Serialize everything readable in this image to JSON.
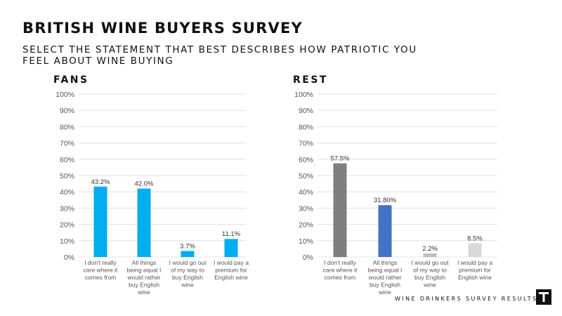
{
  "header": {
    "title": "BRITISH WINE BUYERS SURVEY",
    "subtitle": "SELECT THE STATEMENT THAT BEST DESCRIBES HOW PATRIOTIC YOU FEEL  ABOUT WINE BUYING"
  },
  "footer": {
    "text": "WINE DRINKERS SURVEY RESULTS",
    "logo_icon": "hammer-icon"
  },
  "chart_data": [
    {
      "type": "bar",
      "title": "FANS",
      "categories": [
        "I don't really care where it comes from",
        "All things being equal I would rather buy English wine",
        "I would go out of my way to buy English wine",
        "I would pay a premium for English wine"
      ],
      "category_lines": [
        [
          "I don't really",
          "care where it",
          "comes from"
        ],
        [
          "All things",
          "being equal I",
          "would rather",
          "buy English",
          "wine"
        ],
        [
          "I would go out",
          "of my way to",
          "buy English",
          "wine"
        ],
        [
          "I would pay a",
          "premium for",
          "English wine"
        ]
      ],
      "values": [
        43.2,
        42.0,
        3.7,
        11.1
      ],
      "data_labels": [
        "43.2%",
        "42.0%",
        "3.7%",
        "11.1%"
      ],
      "colors": [
        "#00aeef",
        "#00aeef",
        "#00aeef",
        "#00aeef"
      ],
      "ylim": [
        0,
        100
      ],
      "yticks": [
        "0%",
        "10%",
        "20%",
        "30%",
        "40%",
        "50%",
        "60%",
        "70%",
        "80%",
        "90%",
        "100%"
      ],
      "grid": true
    },
    {
      "type": "bar",
      "title": "REST",
      "categories": [
        "I don't really care where it comes from",
        "All things being equal I would rather buy English wine",
        "I would go out of my way to buy English wine",
        "I would pay a premium for English wine"
      ],
      "category_lines": [
        [
          "I don't really",
          "care where it",
          "comes from"
        ],
        [
          "All things",
          "being equal I",
          "would rather",
          "buy English",
          "wine"
        ],
        [
          "I would go out",
          "of my way to",
          "buy English",
          "wine"
        ],
        [
          "I would pay a",
          "premium for",
          "English wine"
        ]
      ],
      "values": [
        57.5,
        31.8,
        2.2,
        8.5
      ],
      "data_labels": [
        "57.5%",
        "31.80%",
        "2.2%",
        "8.5%"
      ],
      "colors": [
        "#7f7f7f",
        "#4472c4",
        "#bfbfbf",
        "#d9d9d9"
      ],
      "ylim": [
        0,
        100
      ],
      "yticks": [
        "0%",
        "10%",
        "20%",
        "30%",
        "40%",
        "50%",
        "60%",
        "70%",
        "80%",
        "90%",
        "100%"
      ],
      "grid": true
    }
  ]
}
